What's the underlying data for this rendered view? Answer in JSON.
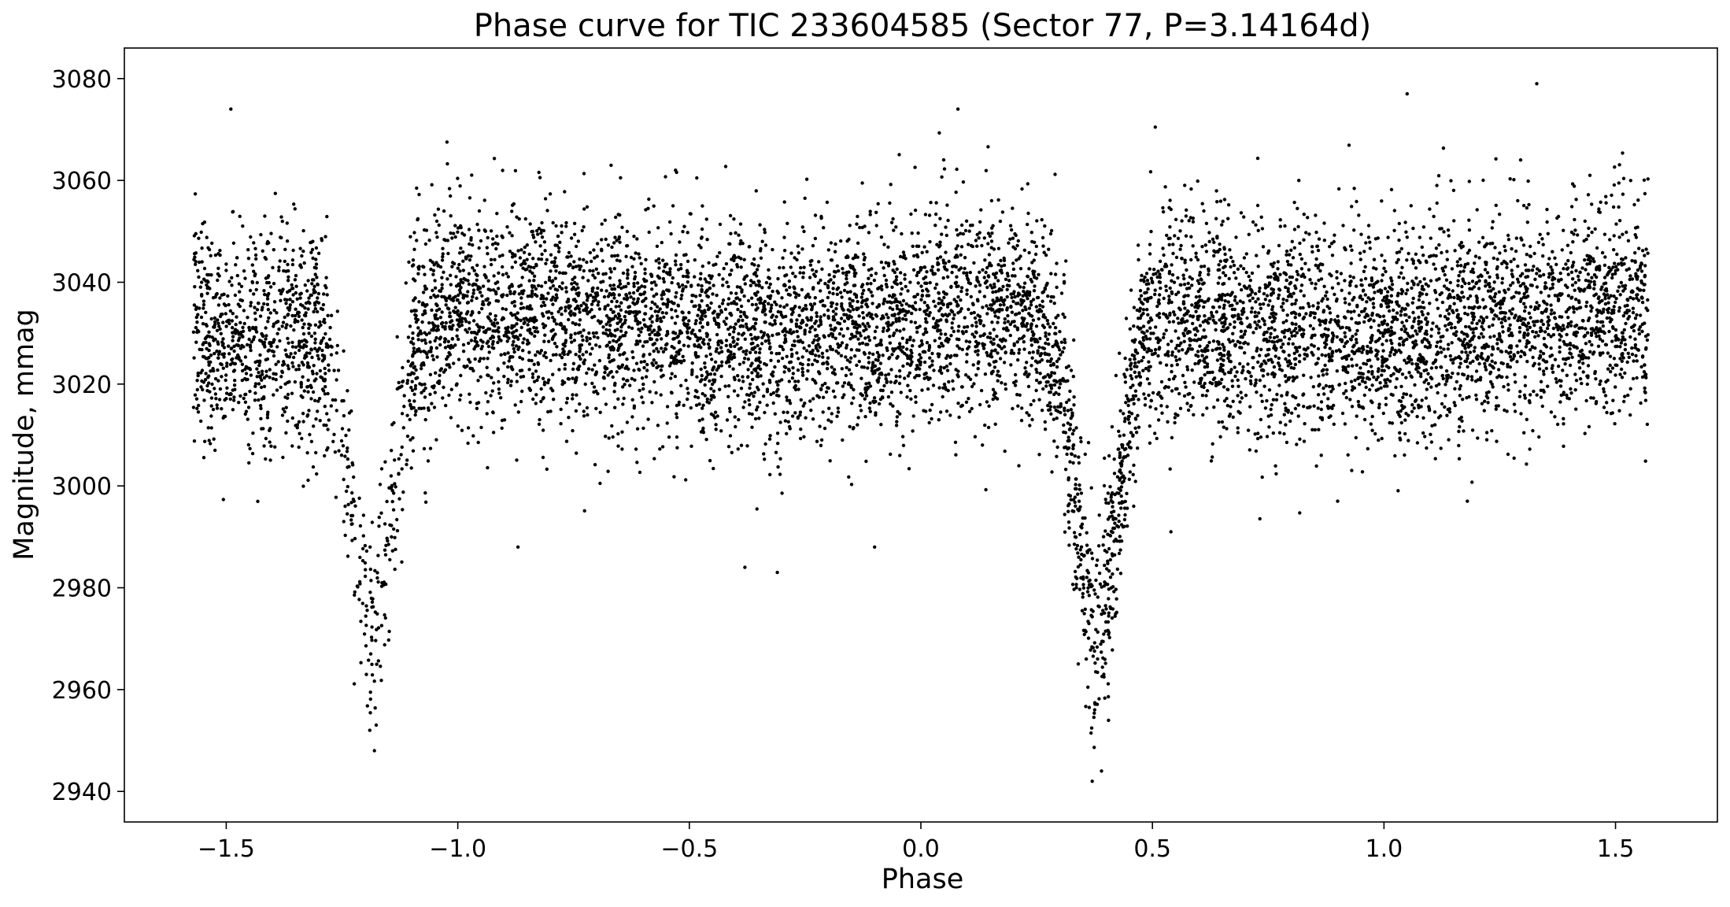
{
  "chart_data": {
    "type": "scatter",
    "title": "Phase curve for TIC 233604585 (Sector 77, P=3.14164d)",
    "xlabel": "Phase",
    "ylabel": "Magnitude, mmag",
    "xlim": [
      -1.72,
      1.72
    ],
    "ylim": [
      2934,
      3086
    ],
    "x_ticks": [
      -1.5,
      -1.0,
      -0.5,
      0.0,
      0.5,
      1.0,
      1.5
    ],
    "x_tick_labels": [
      "−1.5",
      "−1.0",
      "−0.5",
      "0.0",
      "0.5",
      "1.0",
      "1.5"
    ],
    "y_ticks": [
      2940,
      2960,
      2980,
      3000,
      3020,
      3040,
      3060,
      3080
    ],
    "y_tick_labels": [
      "2940",
      "2960",
      "2980",
      "3000",
      "3020",
      "3040",
      "3060",
      "3080"
    ],
    "grid": false,
    "legend": "none",
    "marker_color": "#000000",
    "baseline_mmag": 3032,
    "phase_range": [
      -1.571,
      1.571
    ],
    "gap": [
      -1.28,
      -1.11
    ],
    "eclipses": [
      {
        "center": -1.185,
        "min_mmag": 2975
      },
      {
        "center": 0.38,
        "min_mmag": 2970
      }
    ],
    "anchor_points": [
      {
        "x": -1.49,
        "y": 3074
      },
      {
        "x": -1.18,
        "y": 2948
      },
      {
        "x": -1.19,
        "y": 2952
      },
      {
        "x": 0.08,
        "y": 3074
      },
      {
        "x": 0.37,
        "y": 2942
      },
      {
        "x": 0.39,
        "y": 2944
      },
      {
        "x": 1.05,
        "y": 3077
      },
      {
        "x": 1.33,
        "y": 3079
      },
      {
        "x": -0.87,
        "y": 2988
      },
      {
        "x": -0.38,
        "y": 2984
      },
      {
        "x": -0.31,
        "y": 2983
      },
      {
        "x": -0.1,
        "y": 2988
      },
      {
        "x": 0.54,
        "y": 2991
      },
      {
        "x": 0.9,
        "y": 2997
      },
      {
        "x": 1.18,
        "y": 2997
      }
    ]
  }
}
